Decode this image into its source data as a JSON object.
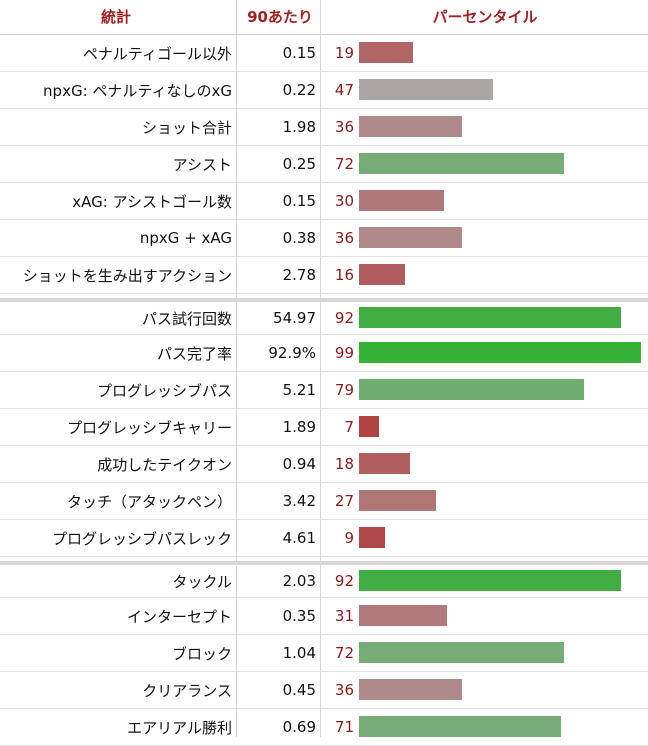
{
  "header": {
    "stat": "統計",
    "per90": "90あたり",
    "percentile": "パーセンタイル"
  },
  "colors": {
    "header_text": "#a32121",
    "percentile_text": "#8b1a1a"
  },
  "chart_data": {
    "type": "bar",
    "orientation": "horizontal",
    "xlim": [
      0,
      99
    ],
    "groups": [
      {
        "rows": [
          {
            "stat": "ペナルティゴール以外",
            "per90": "0.15",
            "percentile": 19,
            "color": "#b06666"
          },
          {
            "stat": "npxG: ペナルティなしのxG",
            "per90": "0.22",
            "percentile": 47,
            "color": "#aba5a5"
          },
          {
            "stat": "ショット合計",
            "per90": "1.98",
            "percentile": 36,
            "color": "#b08a8a"
          },
          {
            "stat": "アシスト",
            "per90": "0.25",
            "percentile": 72,
            "color": "#76ad76"
          },
          {
            "stat": "xAG: アシストゴール数",
            "per90": "0.15",
            "percentile": 30,
            "color": "#b07878"
          },
          {
            "stat": "npxG + xAG",
            "per90": "0.38",
            "percentile": 36,
            "color": "#b08a8a"
          },
          {
            "stat": "ショットを生み出すアクション",
            "per90": "2.78",
            "percentile": 16,
            "color": "#b05c5c"
          }
        ]
      },
      {
        "rows": [
          {
            "stat": "パス試行回数",
            "per90": "54.97",
            "percentile": 92,
            "color": "#42ad42"
          },
          {
            "stat": "パス完了率",
            "per90": "92.9%",
            "percentile": 99,
            "color": "#36b336"
          },
          {
            "stat": "プログレッシブパス",
            "per90": "5.21",
            "percentile": 79,
            "color": "#70ad70"
          },
          {
            "stat": "プログレッシブキャリー",
            "per90": "1.89",
            "percentile": 7,
            "color": "#b04242"
          },
          {
            "stat": "成功したテイクオン",
            "per90": "0.94",
            "percentile": 18,
            "color": "#b05e5e"
          },
          {
            "stat": "タッチ（アタックペン）",
            "per90": "3.42",
            "percentile": 27,
            "color": "#b07575"
          },
          {
            "stat": "プログレッシブパスレック",
            "per90": "4.61",
            "percentile": 9,
            "color": "#b04848"
          }
        ]
      },
      {
        "rows": [
          {
            "stat": "タックル",
            "per90": "2.03",
            "percentile": 92,
            "color": "#42ad42"
          },
          {
            "stat": "インターセプト",
            "per90": "0.35",
            "percentile": 31,
            "color": "#b07a7a"
          },
          {
            "stat": "ブロック",
            "per90": "1.04",
            "percentile": 72,
            "color": "#76ad76"
          },
          {
            "stat": "クリアランス",
            "per90": "0.45",
            "percentile": 36,
            "color": "#b08a8a"
          },
          {
            "stat": "エアリアル勝利",
            "per90": "0.69",
            "percentile": 71,
            "color": "#76ad76"
          }
        ]
      }
    ]
  }
}
